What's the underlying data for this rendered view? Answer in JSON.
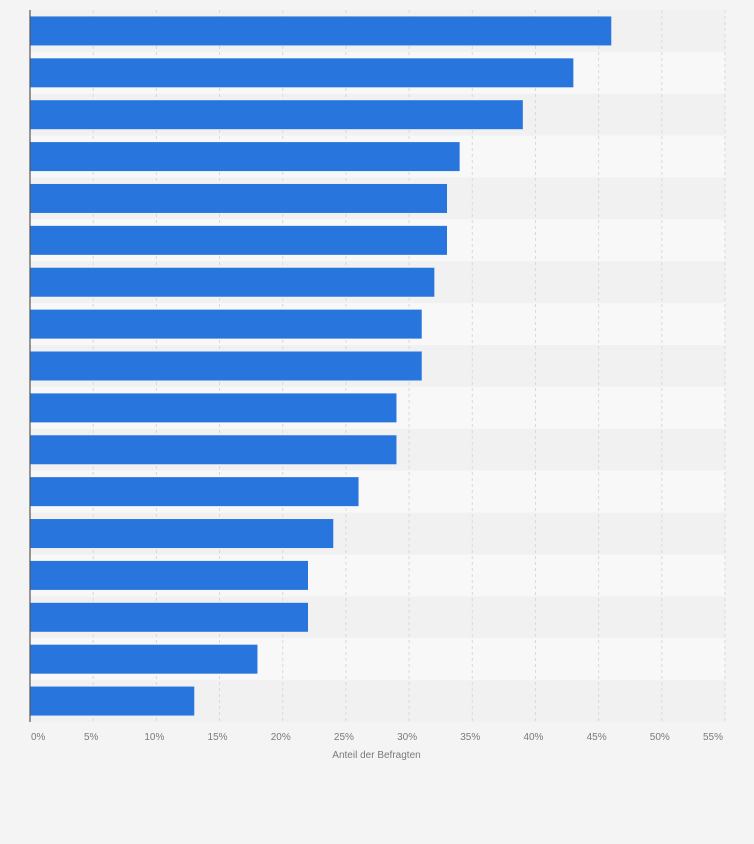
{
  "chart_data": {
    "type": "bar",
    "orientation": "horizontal",
    "categories": [
      "",
      "",
      "",
      "",
      "",
      "",
      "",
      "",
      "",
      "",
      "",
      "",
      "",
      "",
      "",
      "",
      ""
    ],
    "values": [
      46,
      43,
      39,
      34,
      33,
      33,
      32,
      31,
      31,
      29,
      29,
      26,
      24,
      22,
      22,
      18,
      13
    ],
    "x_ticks": [
      "0%",
      "5%",
      "10%",
      "15%",
      "20%",
      "25%",
      "30%",
      "35%",
      "40%",
      "45%",
      "50%",
      "55%"
    ],
    "xlim": [
      0,
      55
    ],
    "xlabel": "Anteil der Befragten",
    "ylabel": "",
    "title": "",
    "grid": "vertical dashed",
    "bar_color": "#2876dd",
    "band_colors": [
      "#f1f1f1",
      "#f8f8f8"
    ],
    "background_color": "#f4f4f4"
  }
}
